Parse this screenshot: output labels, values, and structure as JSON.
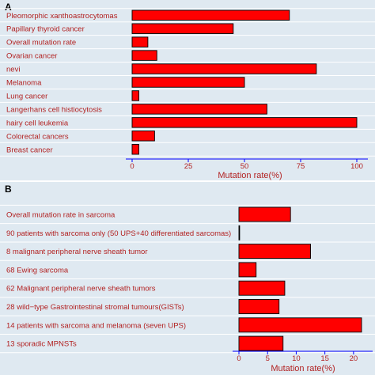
{
  "chart_data": [
    {
      "type": "bar",
      "orientation": "horizontal",
      "panel_label": "A",
      "categories": [
        "Pleomorphic xanthoastrocytomas",
        "Papillary thyroid cancer",
        "Overall mutation rate",
        "Ovarian cancer",
        "nevi",
        "Melanoma",
        "Lung cancer",
        "Langerhans cell histiocytosis",
        "hairy cell leukemia",
        "Colorectal cancers",
        "Breast cancer"
      ],
      "values": [
        70,
        45,
        7,
        11,
        82,
        50,
        3,
        60,
        100,
        10,
        3
      ],
      "xlabel": "Mutation rate(%)",
      "xlim": [
        0,
        100
      ],
      "xticks": [
        0,
        25,
        50,
        75,
        100
      ],
      "grid": true,
      "bar_color": "#ff0000",
      "bar_edge": "#000000",
      "label_color": "#b22222",
      "panel_background": "#dfe9f1",
      "gridline_color": "#ffffff",
      "axis_color": "#0000ff"
    },
    {
      "type": "bar",
      "orientation": "horizontal",
      "panel_label": "B",
      "categories": [
        "Overall mutation rate in sarcoma",
        "90 patients with sarcoma only (50 UPS+40 differentiated sarcomas)",
        "8 malignant peripheral nerve sheath tumor",
        "68 Ewing sarcoma",
        "62 Malignant peripheral nerve sheath tumors",
        "28 wild−type Gastrointestinal stromal tumours(GISTs)",
        "14 patients with sarcoma and melanoma (seven UPS)",
        "13 sporadic MPNSTs"
      ],
      "values": [
        9,
        0,
        12.5,
        3,
        8,
        7,
        21.4,
        7.7
      ],
      "xlabel": "Mutation rate(%)",
      "xlim": [
        0,
        21.4
      ],
      "xticks": [
        0,
        5,
        10,
        15,
        20
      ],
      "grid": true,
      "bar_color": "#ff0000",
      "bar_edge": "#000000",
      "label_color": "#b22222",
      "panel_background": "#dfe9f1",
      "gridline_color": "#ffffff",
      "axis_color": "#0000ff"
    }
  ]
}
